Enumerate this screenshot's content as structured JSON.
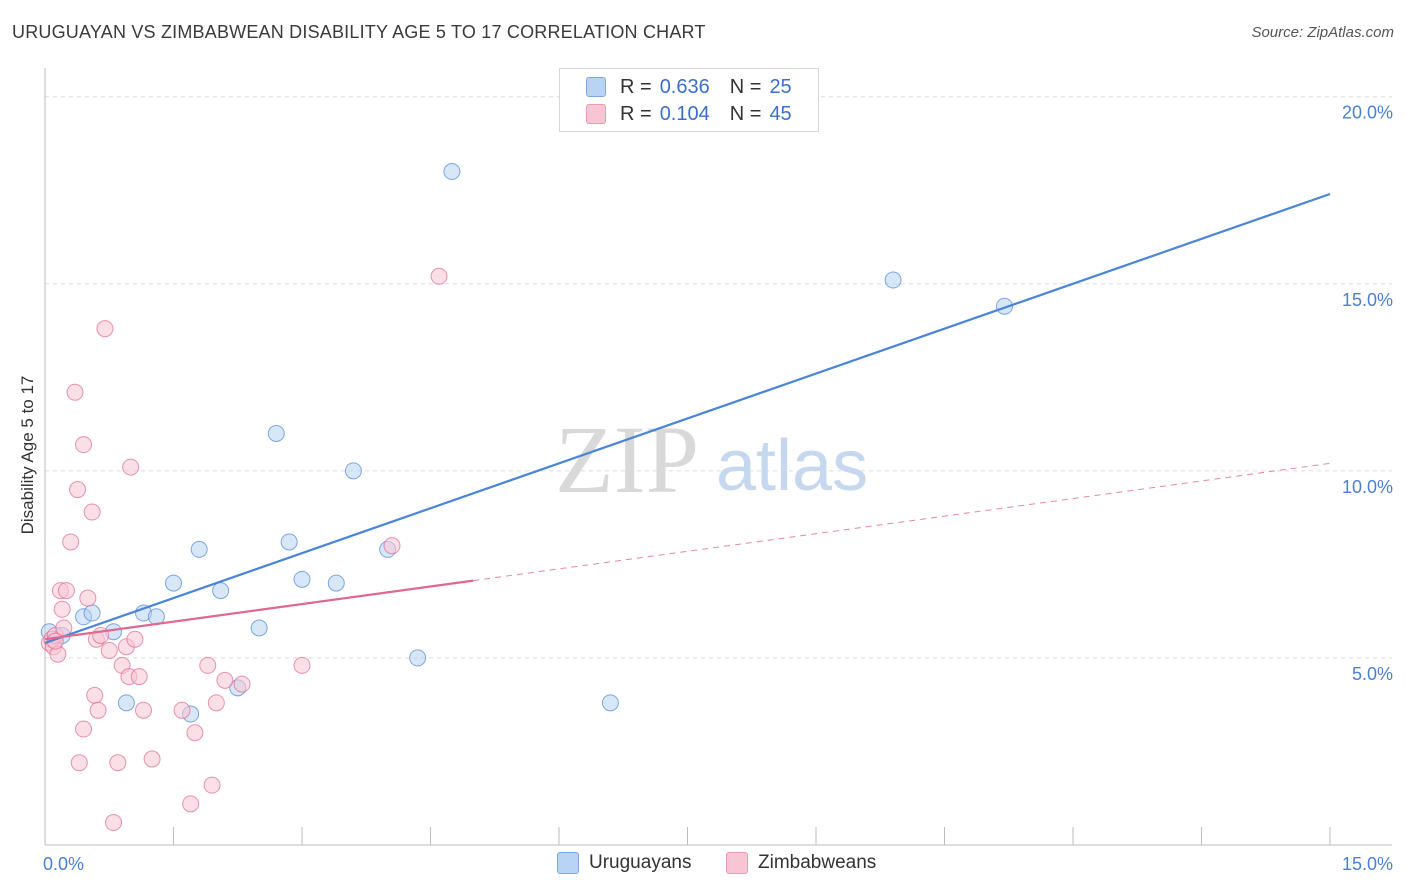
{
  "title": "URUGUAYAN VS ZIMBABWEAN DISABILITY AGE 5 TO 17 CORRELATION CHART",
  "source": "Source: ZipAtlas.com",
  "watermark": {
    "zip": "ZIP",
    "atlas": "atlas"
  },
  "legend": {
    "rows": [
      {
        "r_label": "R =",
        "r_value": "0.636",
        "n_label": "N =",
        "n_value": "25",
        "color": "#a8c8f0"
      },
      {
        "r_label": "R =",
        "r_value": "0.104",
        "n_label": "N =",
        "n_value": "45",
        "color": "#f5b8c8"
      }
    ]
  },
  "bottom_legend": [
    {
      "label": "Uruguayans",
      "color": "#a8c8f0"
    },
    {
      "label": "Zimbabweans",
      "color": "#f5b8c8"
    }
  ],
  "chart_data": {
    "type": "scatter",
    "ylabel": "Disability Age 5 to 17",
    "xlim": [
      0,
      15
    ],
    "ylim": [
      0,
      20.5
    ],
    "x_tick_labels": [
      {
        "value": 0,
        "label": "0.0%"
      },
      {
        "value": 15,
        "label": "15.0%"
      }
    ],
    "y_tick_labels": [
      {
        "value": 5,
        "label": "5.0%"
      },
      {
        "value": 10,
        "label": "10.0%"
      },
      {
        "value": 15,
        "label": "15.0%"
      },
      {
        "value": 20,
        "label": "20.0%"
      }
    ],
    "grid": true,
    "legend_position": "top-center",
    "series": [
      {
        "name": "Uruguayans",
        "color": "#4a85d8",
        "fill": "#b8d3f3",
        "trend": {
          "x": [
            0.0,
            15.0
          ],
          "y": [
            5.4,
            17.4
          ],
          "dashed_from": null
        },
        "points": [
          [
            0.05,
            5.7
          ],
          [
            0.2,
            5.6
          ],
          [
            0.45,
            6.1
          ],
          [
            0.55,
            6.2
          ],
          [
            0.8,
            5.7
          ],
          [
            0.95,
            3.8
          ],
          [
            1.15,
            6.2
          ],
          [
            1.3,
            6.1
          ],
          [
            1.5,
            7.0
          ],
          [
            1.7,
            3.5
          ],
          [
            1.8,
            7.9
          ],
          [
            2.05,
            6.8
          ],
          [
            2.25,
            4.2
          ],
          [
            2.5,
            5.8
          ],
          [
            2.7,
            11.0
          ],
          [
            2.85,
            8.1
          ],
          [
            3.0,
            7.1
          ],
          [
            3.4,
            7.0
          ],
          [
            3.6,
            10.0
          ],
          [
            4.0,
            7.9
          ],
          [
            4.35,
            5.0
          ],
          [
            4.75,
            18.0
          ],
          [
            6.6,
            3.8
          ],
          [
            9.9,
            15.1
          ],
          [
            11.2,
            14.4
          ]
        ]
      },
      {
        "name": "Zimbabweans",
        "color": "#e06890",
        "fill": "#f7c5d3",
        "trend": {
          "x": [
            0.0,
            15.0
          ],
          "y": [
            5.5,
            10.2
          ],
          "dashed_from": 5.0
        },
        "points": [
          [
            0.05,
            5.4
          ],
          [
            0.08,
            5.5
          ],
          [
            0.1,
            5.3
          ],
          [
            0.12,
            5.6
          ],
          [
            0.15,
            5.1
          ],
          [
            0.18,
            6.8
          ],
          [
            0.2,
            6.3
          ],
          [
            0.22,
            5.8
          ],
          [
            0.25,
            6.8
          ],
          [
            0.3,
            8.1
          ],
          [
            0.35,
            12.1
          ],
          [
            0.38,
            9.5
          ],
          [
            0.4,
            2.2
          ],
          [
            0.45,
            3.1
          ],
          [
            0.45,
            10.7
          ],
          [
            0.5,
            6.6
          ],
          [
            0.55,
            8.9
          ],
          [
            0.58,
            4.0
          ],
          [
            0.6,
            5.5
          ],
          [
            0.62,
            3.6
          ],
          [
            0.65,
            5.6
          ],
          [
            0.7,
            13.8
          ],
          [
            0.75,
            5.2
          ],
          [
            0.8,
            0.6
          ],
          [
            0.85,
            2.2
          ],
          [
            0.9,
            4.8
          ],
          [
            0.95,
            5.3
          ],
          [
            0.98,
            4.5
          ],
          [
            1.0,
            10.1
          ],
          [
            1.05,
            5.5
          ],
          [
            1.1,
            4.5
          ],
          [
            1.15,
            3.6
          ],
          [
            1.25,
            2.3
          ],
          [
            1.6,
            3.6
          ],
          [
            1.7,
            1.1
          ],
          [
            1.75,
            3.0
          ],
          [
            1.9,
            4.8
          ],
          [
            1.95,
            1.6
          ],
          [
            2.0,
            3.8
          ],
          [
            2.1,
            4.4
          ],
          [
            2.3,
            4.3
          ],
          [
            3.0,
            4.8
          ],
          [
            4.6,
            15.2
          ],
          [
            4.05,
            8.0
          ],
          [
            0.12,
            5.45
          ]
        ]
      }
    ]
  }
}
